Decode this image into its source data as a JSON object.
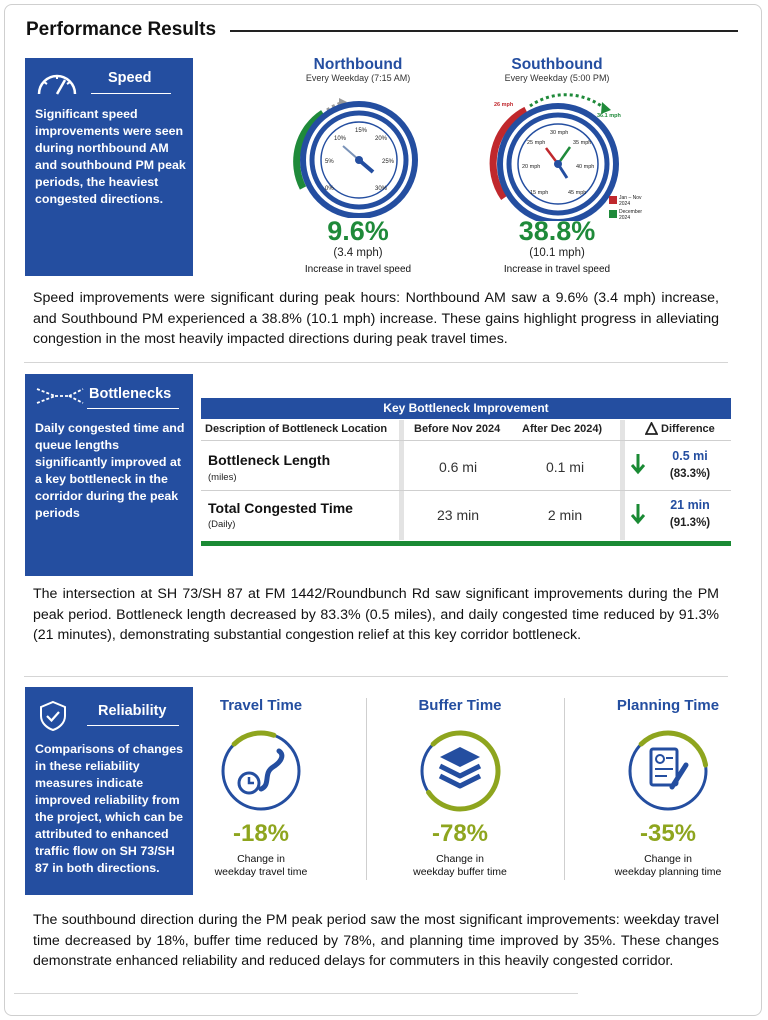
{
  "title": "Performance Results",
  "speed": {
    "panel_title": "Speed",
    "panel_body": "Significant speed improvements were seen during northbound AM and southbound PM peak periods, the heaviest congested directions.",
    "northbound": {
      "title": "Northbound",
      "subtitle": "Every Weekday (7:15 AM)",
      "pct": "9.6%",
      "mph": "(3.4 mph)",
      "caption": "Increase in travel speed",
      "dial_labels": [
        "0%",
        "5%",
        "10%",
        "15%",
        "20%",
        "25%",
        "30%"
      ]
    },
    "southbound": {
      "title": "Southbound",
      "subtitle": "Every Weekday (5:00 PM)",
      "pct": "38.8%",
      "mph": "(10.1 mph)",
      "caption": "Increase in travel speed",
      "start_label": "26 mph",
      "end_label": "36.1 mph",
      "dial_labels": [
        "15 mph",
        "20 mph",
        "25 mph",
        "30 mph",
        "35 mph",
        "40 mph",
        "45 mph"
      ],
      "legend": [
        {
          "label": "Jan – Nov 2024",
          "color": "#c0282d"
        },
        {
          "label": "December 2024",
          "color": "#1f8a3a"
        }
      ]
    },
    "paragraph": "Speed improvements were significant during peak hours: Northbound AM saw a 9.6% (3.4 mph) increase, and Southbound PM experienced a 38.8% (10.1 mph) increase. These gains highlight progress in alleviating congestion in the most heavily impacted directions during peak travel times."
  },
  "bottlenecks": {
    "panel_title": "Bottlenecks",
    "panel_body": "Daily congested time and queue lengths significantly improved at a key bottleneck in the corridor during the peak periods",
    "table_title": "Key Bottleneck Improvement",
    "columns": [
      "Description of Bottleneck Location",
      "Before Nov 2024",
      "After  Dec 2024)",
      "Difference"
    ],
    "rows": [
      {
        "label": "Bottleneck Length",
        "sub": "(miles)",
        "before": "0.6 mi",
        "after": "0.1 mi",
        "diff": "0.5 mi",
        "diff_pct": "(83.3%)"
      },
      {
        "label": "Total Congested Time",
        "sub": "(Daily)",
        "before": "23 min",
        "after": "2 min",
        "diff": "21 min",
        "diff_pct": "(91.3%)"
      }
    ],
    "paragraph": "The intersection at SH 73/SH 87 at FM 1442/Roundbunch Rd saw significant improvements during the PM peak period. Bottleneck length decreased by 83.3% (0.5 miles), and daily congested time reduced by 91.3% (21 minutes), demonstrating substantial congestion relief at this key corridor bottleneck."
  },
  "reliability": {
    "panel_title": "Reliability",
    "panel_body": "Comparisons of changes in these reliability measures indicate improved reliability from the project, which can be attributed to enhanced traffic flow on SH 73/SH 87 in both directions.",
    "measures": [
      {
        "title": "Travel Time",
        "pct": "-18%",
        "cap1": "Change in",
        "cap2": "weekday travel time",
        "fill": 0.18
      },
      {
        "title": "Buffer Time",
        "pct": "-78%",
        "cap1": "Change in",
        "cap2": "weekday buffer time",
        "fill": 0.78
      },
      {
        "title": "Planning Time",
        "pct": "-35%",
        "cap1": "Change in",
        "cap2": "weekday planning time",
        "fill": 0.35
      }
    ],
    "paragraph": "The southbound direction during the PM peak period saw the most significant improvements: weekday travel time decreased by 18%, buffer time reduced by 78%, and planning time improved by 35%. These changes demonstrate enhanced reliability and reduced delays for commuters in this heavily congested corridor."
  },
  "colors": {
    "brand_blue": "#244ea0",
    "green": "#1f8a3a",
    "red": "#c0282d",
    "olive": "#8ea51e"
  }
}
